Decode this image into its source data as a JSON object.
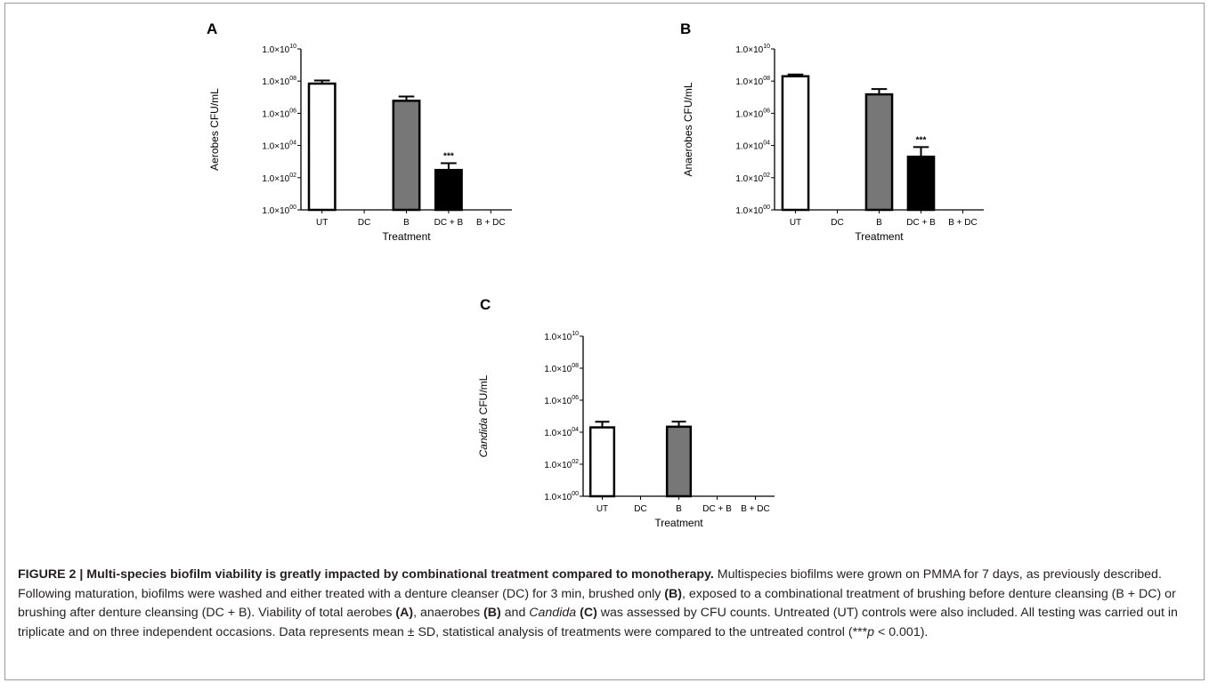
{
  "chart_data": [
    {
      "panel_label": "A",
      "type": "bar",
      "xlabel": "Treatment",
      "ylabel": "Aerobes CFU/mL",
      "yscale": "log",
      "ylim": [
        1,
        10000000000
      ],
      "yticks": [
        1,
        100,
        10000,
        1000000,
        100000000,
        10000000000
      ],
      "ytick_labels": [
        "1.0×10",
        "1.0×10",
        "1.0×10",
        "1.0×10",
        "1.0×10",
        "1.0×10"
      ],
      "ytick_exponents": [
        "00",
        "02",
        "04",
        "06",
        "08",
        "10"
      ],
      "categories": [
        "UT",
        "DC",
        "B",
        "DC + B",
        "B + DC"
      ],
      "values": [
        70000000,
        null,
        6000000,
        300,
        null
      ],
      "error_upper": [
        110000000,
        null,
        11000000,
        800,
        null
      ],
      "bar_colors": [
        "#ffffff",
        "#ffffff",
        "#777777",
        "#000000",
        "#ffffff"
      ],
      "annotations": [
        {
          "category": "DC + B",
          "text": "***"
        }
      ]
    },
    {
      "panel_label": "B",
      "type": "bar",
      "xlabel": "Treatment",
      "ylabel": "Anaerobes CFU/mL",
      "yscale": "log",
      "ylim": [
        1,
        10000000000
      ],
      "yticks": [
        1,
        100,
        10000,
        1000000,
        100000000,
        10000000000
      ],
      "ytick_labels": [
        "1.0×10",
        "1.0×10",
        "1.0×10",
        "1.0×10",
        "1.0×10",
        "1.0×10"
      ],
      "ytick_exponents": [
        "00",
        "02",
        "04",
        "06",
        "08",
        "10"
      ],
      "categories": [
        "UT",
        "DC",
        "B",
        "DC + B",
        "B + DC"
      ],
      "values": [
        200000000,
        null,
        15000000,
        2000,
        null
      ],
      "error_upper": [
        260000000,
        null,
        32000000,
        8000,
        null
      ],
      "bar_colors": [
        "#ffffff",
        "#ffffff",
        "#777777",
        "#000000",
        "#ffffff"
      ],
      "annotations": [
        {
          "category": "DC + B",
          "text": "***"
        }
      ]
    },
    {
      "panel_label": "C",
      "type": "bar",
      "xlabel": "Treatment",
      "ylabel_italic": "Candida",
      "ylabel_rest": " CFU/mL",
      "yscale": "log",
      "ylim": [
        1,
        10000000000
      ],
      "yticks": [
        1,
        100,
        10000,
        1000000,
        100000000,
        10000000000
      ],
      "ytick_labels": [
        "1.0×10",
        "1.0×10",
        "1.0×10",
        "1.0×10",
        "1.0×10",
        "1.0×10"
      ],
      "ytick_exponents": [
        "00",
        "02",
        "04",
        "06",
        "08",
        "10"
      ],
      "categories": [
        "UT",
        "DC",
        "B",
        "DC + B",
        "B + DC"
      ],
      "values": [
        20000,
        null,
        22000,
        null,
        null
      ],
      "error_upper": [
        45000,
        null,
        46000,
        null,
        null
      ],
      "bar_colors": [
        "#ffffff",
        "#ffffff",
        "#777777",
        "#000000",
        "#ffffff"
      ],
      "annotations": []
    }
  ],
  "caption": {
    "figure_label": "FIGURE 2 | Multi-species biofilm viability is greatly impacted by combinational treatment compared to monotherapy.",
    "s1": " Multispecies biofilms were grown on PMMA for 7 days, as previously described. Following maturation, biofilms were washed and either treated with a denture cleanser (DC) for 3 min, brushed only ",
    "b1": "(B)",
    "s2": ", exposed to a combinational treatment of brushing before denture cleansing (B + DC) or brushing after denture cleansing (DC + B). Viability of total aerobes ",
    "b2": "(A)",
    "s3": ", anaerobes ",
    "b3": "(B)",
    "s4": " and ",
    "i1": "Candida",
    "s5": " ",
    "b4": "(C)",
    "s6": " was assessed by CFU counts. Untreated (UT) controls were also included. All testing was carried out in triplicate and on three independent occasions. Data represents mean ± SD, statistical analysis of treatments were compared to the untreated control (***",
    "i2": "p",
    "s7": " < 0.001)."
  }
}
